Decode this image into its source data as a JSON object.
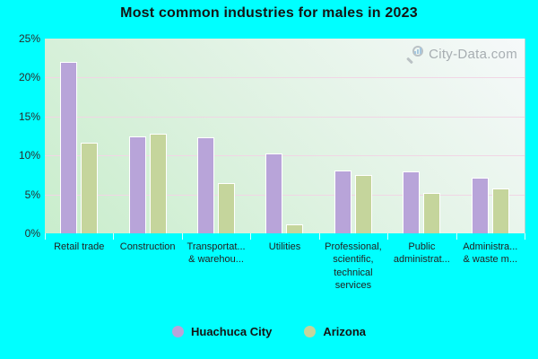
{
  "title": "Most common industries for males in 2023",
  "watermark": {
    "text": "City-Data.com",
    "icon": "magnifier-bars-icon"
  },
  "colors": {
    "background": "#00FFFF",
    "huachuca_city": "#b8a4d9",
    "arizona": "#c5d59c",
    "plot_gradient_light": "#f6f9fa",
    "plot_gradient_green": "#c9edcc",
    "gridline": "#f1d6e5",
    "title_text": "#141414",
    "axis_text": "#2b2b2b",
    "watermark_text": "#8e959b"
  },
  "chart_data": {
    "type": "bar",
    "title": "Most common industries for males in 2023",
    "categories": [
      "Retail trade",
      "Construction",
      "Transportat...\n& warehou...",
      "Utilities",
      "Professional,\nscientific,\ntechnical\nservices",
      "Public\nadministrat...",
      "Administra...\n& waste m..."
    ],
    "series": [
      {
        "name": "Huachuca City",
        "color": "#b8a4d9",
        "values": [
          22.0,
          12.5,
          12.3,
          10.3,
          8.1,
          8.0,
          7.1
        ]
      },
      {
        "name": "Arizona",
        "color": "#c5d59c",
        "values": [
          11.6,
          12.8,
          6.4,
          1.2,
          7.5,
          5.2,
          5.8
        ]
      }
    ],
    "xlabel": "",
    "ylabel": "",
    "ylim": [
      0,
      25
    ],
    "yticks": [
      "0%",
      "5%",
      "10%",
      "15%",
      "20%",
      "25%"
    ],
    "grid": true,
    "legend_position": "bottom"
  }
}
